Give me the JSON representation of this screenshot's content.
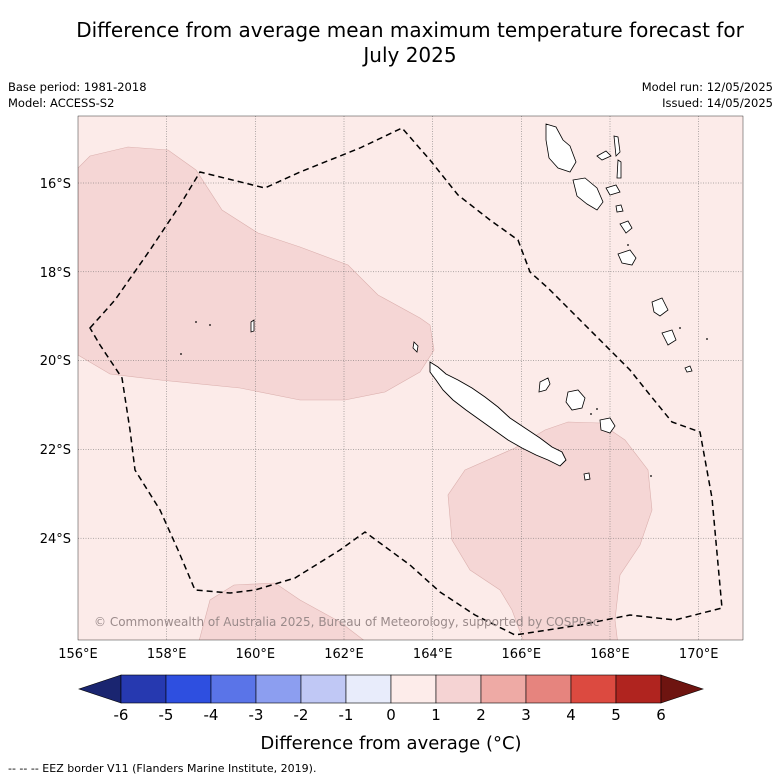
{
  "title_line1": "Difference from average mean maximum temperature forecast for",
  "title_line2": "July 2025",
  "base_period": "Base period: 1981-2018",
  "model": "Model: ACCESS-S2",
  "model_run": "Model run: 12/05/2025",
  "issued": "Issued: 14/05/2025",
  "attribution": "© Commonwealth of Australia 2025, Bureau of Meteorology, supported by COSPPac",
  "map": {
    "lon_range": [
      156,
      171
    ],
    "lat_range": [
      -26,
      -14.2
    ],
    "lon_ticks": [
      "156°E",
      "158°E",
      "160°E",
      "162°E",
      "164°E",
      "166°E",
      "168°E",
      "170°E"
    ],
    "lat_ticks": [
      "16°S",
      "18°S",
      "20°S",
      "22°S",
      "24°S"
    ],
    "background_class": "0 to 1",
    "shaded_regions_class": "1 to 2"
  },
  "colorbar": {
    "title": "Difference from average (°C)",
    "ticks": [
      "-6",
      "-5",
      "-4",
      "-3",
      "-2",
      "-1",
      "0",
      "1",
      "2",
      "3",
      "4",
      "5",
      "6"
    ],
    "colors": [
      "#1a2570",
      "#2639b0",
      "#2e4fe0",
      "#5a74e8",
      "#8c9ef0",
      "#c0c8f5",
      "#e8ecfb",
      "#fdecea",
      "#f5d3d3",
      "#eeaaa5",
      "#e6847e",
      "#dc4a40",
      "#b0241f",
      "#6e1410"
    ]
  },
  "footnote": "-- -- -- EEZ border V11 (Flanders Marine Institute, 2019)."
}
